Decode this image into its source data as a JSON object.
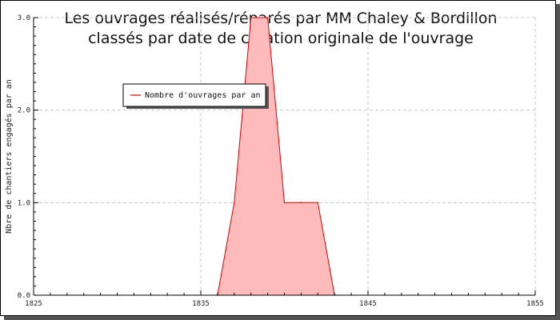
{
  "chart_data": {
    "type": "area",
    "title": "Les ouvrages réalisés/réparés par MM Chaley & Bordillon",
    "subtitle": "classés par date de création originale de l'ouvrage",
    "xlabel": "",
    "ylabel": "Nbre de chantiers engagés par an",
    "xlim": [
      1825,
      1855
    ],
    "ylim": [
      0,
      3
    ],
    "x_ticks": [
      "1825",
      "1835",
      "1845",
      "1855"
    ],
    "y_ticks": [
      "0.0",
      "1.0",
      "2.0",
      "3.0"
    ],
    "grid": true,
    "legend_position": "upper-left",
    "series": [
      {
        "name": "Nombre d'ouvrages par an",
        "color": "#dd0000",
        "fill": "#ffbbbb",
        "x": [
          1836,
          1837,
          1838,
          1839,
          1840,
          1841,
          1842,
          1843
        ],
        "y": [
          0,
          1,
          3,
          3,
          1,
          1,
          1,
          0
        ]
      }
    ]
  }
}
